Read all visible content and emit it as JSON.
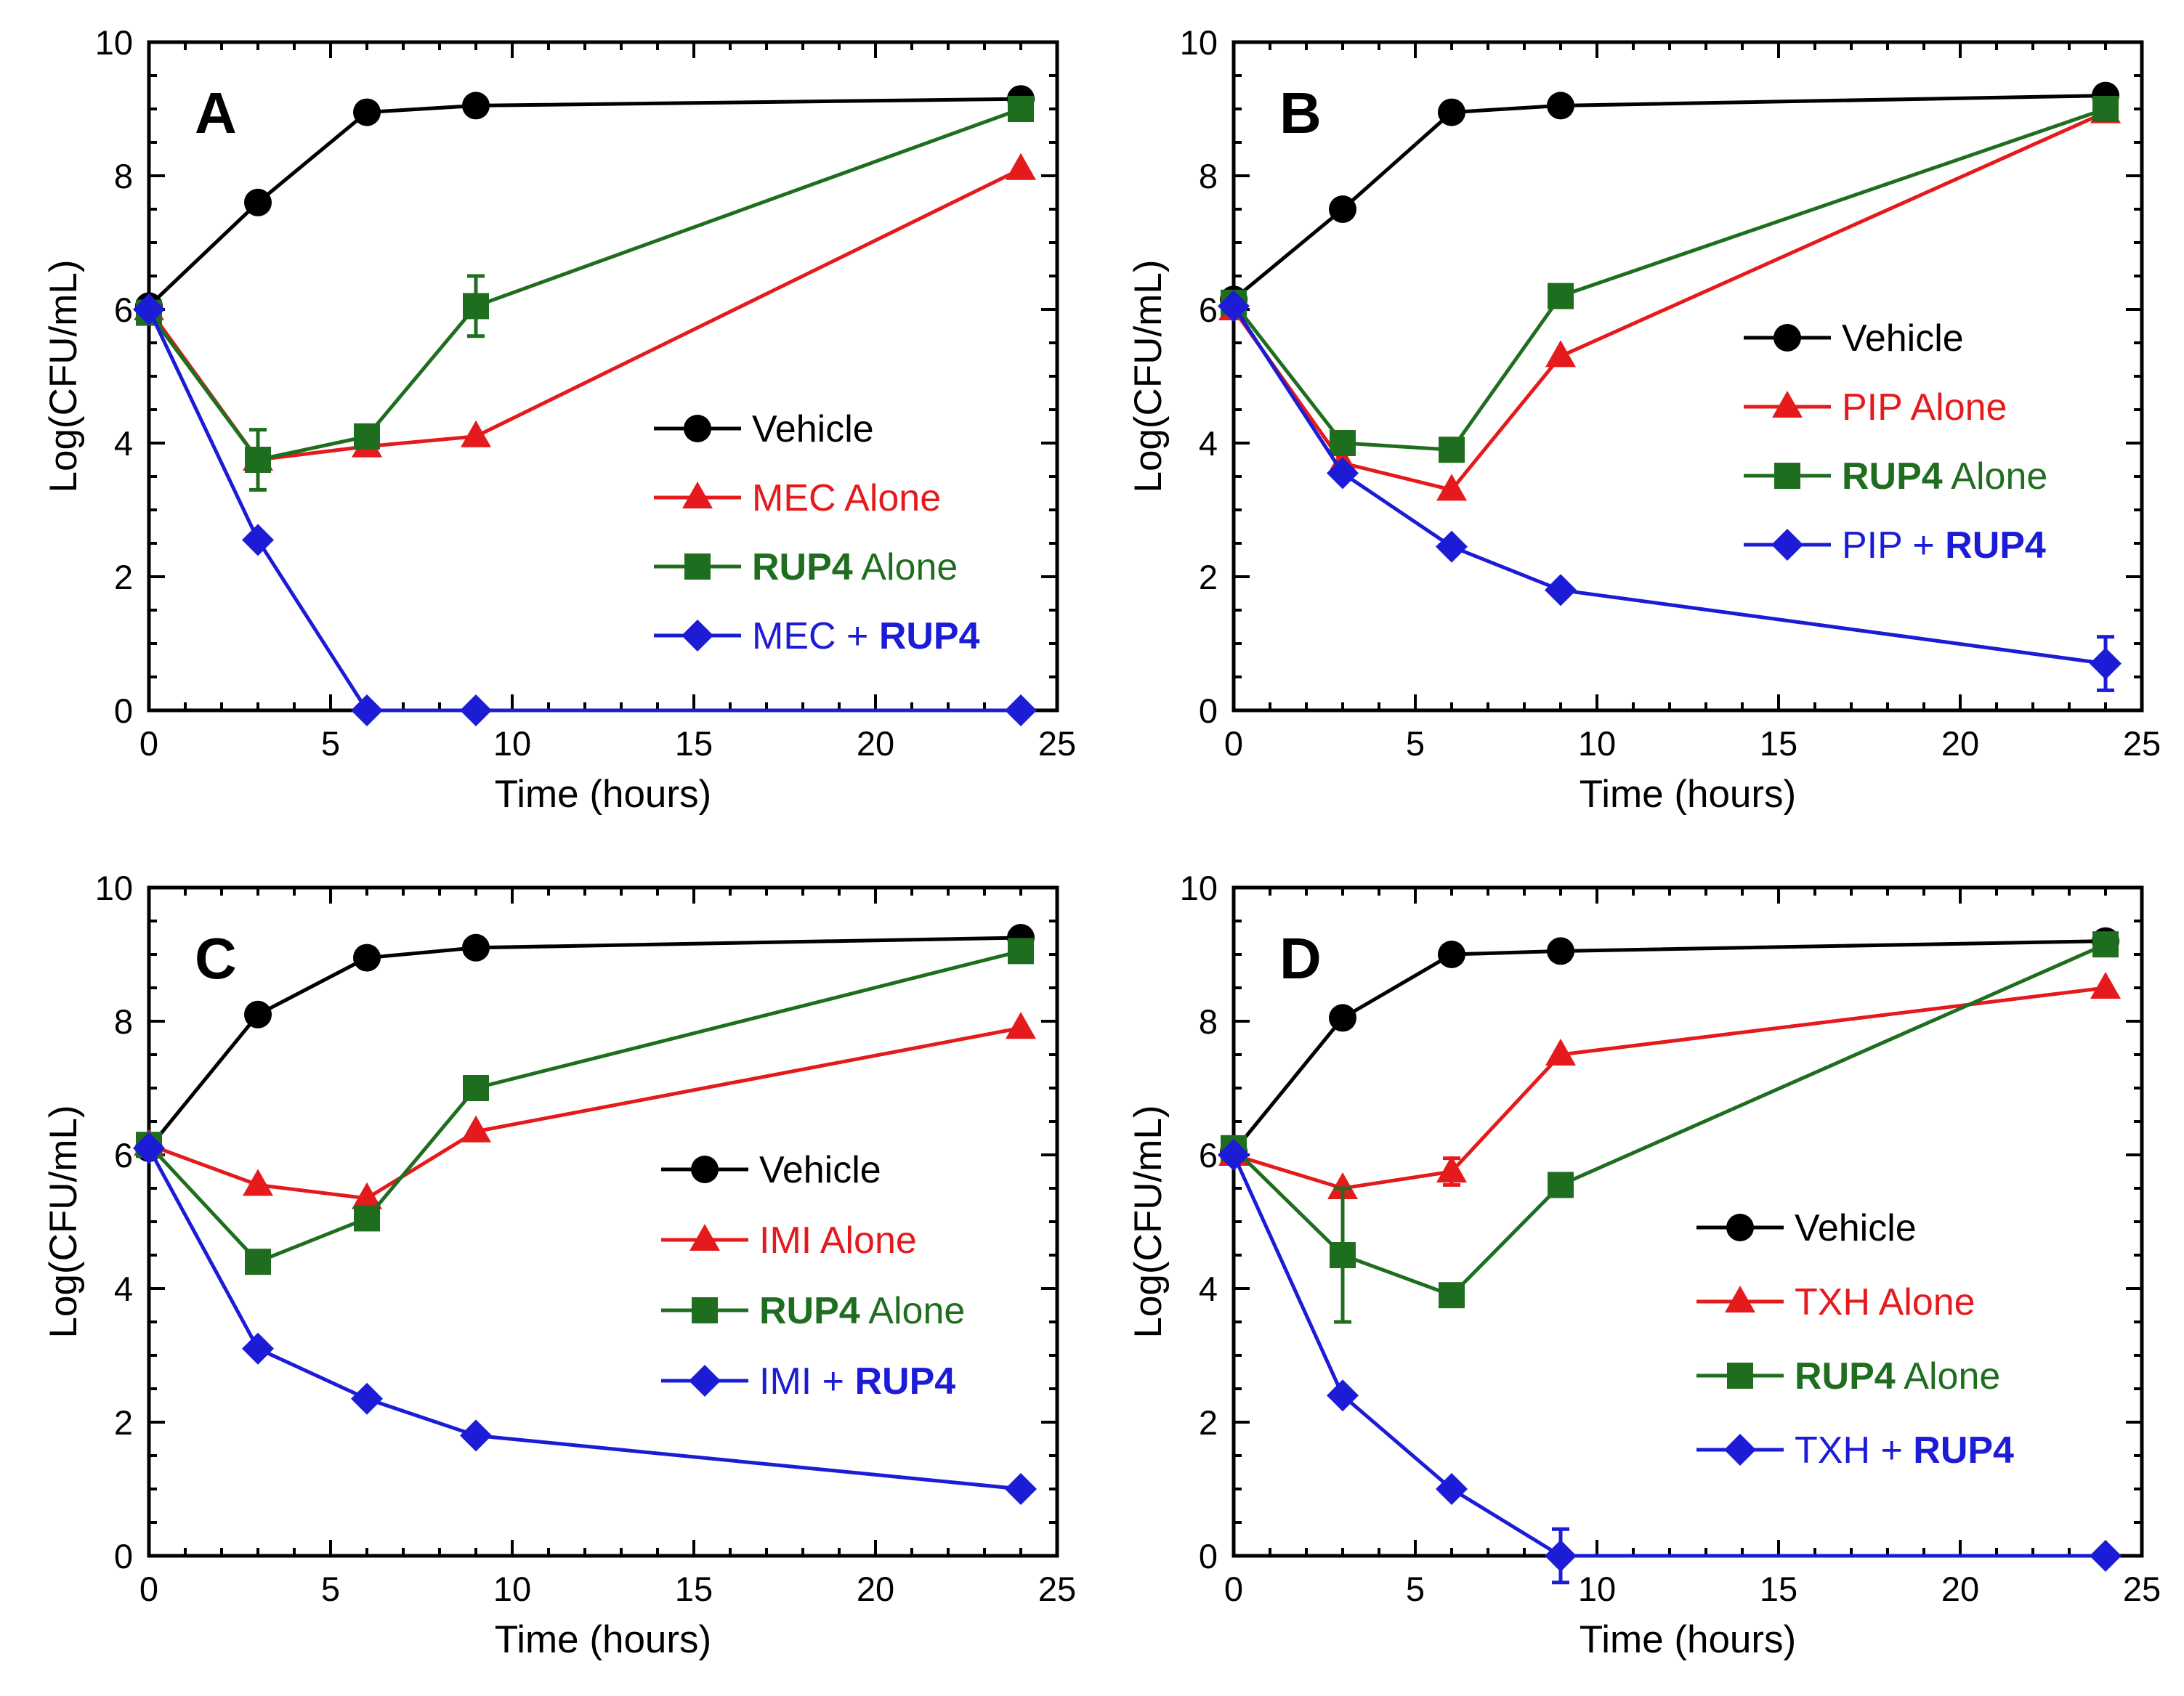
{
  "chart_data": [
    {
      "type": "line",
      "panel_label": "A",
      "xlabel": "Time (hours)",
      "ylabel": "Log(CFU/mL)",
      "xlim": [
        0,
        25
      ],
      "ylim": [
        0,
        10
      ],
      "xticks": [
        0,
        5,
        10,
        15,
        20,
        25
      ],
      "yticks": [
        0,
        2,
        4,
        6,
        8,
        10
      ],
      "x": [
        0,
        3,
        6,
        9,
        24
      ],
      "legend_position": "right-center",
      "series": [
        {
          "key": "vehicle",
          "name": "Vehicle",
          "drug": "",
          "joiner": "",
          "suffix": "",
          "marker": "circle",
          "color": "#000000",
          "values": [
            6.05,
            7.6,
            8.95,
            9.05,
            9.15
          ],
          "errors": [
            0,
            0,
            0,
            0,
            0
          ]
        },
        {
          "key": "drug",
          "name": "MEC Alone",
          "drug": "MEC",
          "joiner": "",
          "suffix": " Alone",
          "marker": "triangle",
          "color": "#e41a1c",
          "values": [
            6.0,
            3.75,
            3.95,
            4.1,
            8.1
          ],
          "errors": [
            0,
            0,
            0,
            0,
            0
          ]
        },
        {
          "key": "rup4",
          "name": "RUP4 Alone",
          "drug": "",
          "joiner": "",
          "suffix": " Alone",
          "bold": "RUP4",
          "marker": "square",
          "color": "#1f6e1f",
          "values": [
            5.95,
            3.75,
            4.1,
            6.05,
            9.0
          ],
          "errors": [
            0,
            0.45,
            0,
            0.45,
            0
          ]
        },
        {
          "key": "combo",
          "name": "MEC + RUP4",
          "drug": "MEC",
          "joiner": " + ",
          "suffix": "",
          "bold": "RUP4",
          "marker": "diamond",
          "color": "#1c1cd6",
          "values": [
            6.0,
            2.55,
            0,
            0,
            0
          ],
          "errors": [
            0,
            0,
            0,
            0,
            0
          ]
        }
      ]
    },
    {
      "type": "line",
      "panel_label": "B",
      "xlabel": "Time (hours)",
      "ylabel": "Log(CFU/mL)",
      "xlim": [
        0,
        25
      ],
      "ylim": [
        0,
        10
      ],
      "xticks": [
        0,
        5,
        10,
        15,
        20,
        25
      ],
      "yticks": [
        0,
        2,
        4,
        6,
        8,
        10
      ],
      "x": [
        0,
        3,
        6,
        9,
        24
      ],
      "legend_position": "upper-right",
      "series": [
        {
          "key": "vehicle",
          "name": "Vehicle",
          "drug": "",
          "joiner": "",
          "suffix": "",
          "marker": "circle",
          "color": "#000000",
          "values": [
            6.15,
            7.5,
            8.95,
            9.05,
            9.2
          ],
          "errors": [
            0,
            0,
            0,
            0,
            0
          ]
        },
        {
          "key": "drug",
          "name": "PIP Alone",
          "drug": "PIP",
          "joiner": "",
          "suffix": " Alone",
          "marker": "triangle",
          "color": "#e41a1c",
          "values": [
            6.0,
            3.7,
            3.3,
            5.3,
            8.95
          ],
          "errors": [
            0,
            0,
            0,
            0,
            0
          ]
        },
        {
          "key": "rup4",
          "name": "RUP4 Alone",
          "drug": "",
          "joiner": "",
          "suffix": " Alone",
          "bold": "RUP4",
          "marker": "square",
          "color": "#1f6e1f",
          "values": [
            6.1,
            4.0,
            3.9,
            6.2,
            9.0
          ],
          "errors": [
            0,
            0,
            0,
            0,
            0
          ]
        },
        {
          "key": "combo",
          "name": "PIP + RUP4",
          "drug": "PIP",
          "joiner": " + ",
          "suffix": "",
          "bold": "RUP4",
          "marker": "diamond",
          "color": "#1c1cd6",
          "values": [
            6.05,
            3.55,
            2.45,
            1.8,
            0.7
          ],
          "errors": [
            0,
            0,
            0,
            0,
            0.4
          ]
        }
      ]
    },
    {
      "type": "line",
      "panel_label": "C",
      "xlabel": "Time (hours)",
      "ylabel": "Log(CFU/mL)",
      "xlim": [
        0,
        25
      ],
      "ylim": [
        0,
        10
      ],
      "xticks": [
        0,
        5,
        10,
        15,
        20,
        25
      ],
      "yticks": [
        0,
        2,
        4,
        6,
        8,
        10
      ],
      "x": [
        0,
        3,
        6,
        9,
        24
      ],
      "legend_position": "right-center",
      "series": [
        {
          "key": "vehicle",
          "name": "Vehicle",
          "drug": "",
          "joiner": "",
          "suffix": "",
          "marker": "circle",
          "color": "#000000",
          "values": [
            6.1,
            8.1,
            8.95,
            9.1,
            9.25
          ],
          "errors": [
            0,
            0,
            0,
            0,
            0
          ]
        },
        {
          "key": "drug",
          "name": "IMI Alone",
          "drug": "IMI",
          "joiner": "",
          "suffix": " Alone",
          "marker": "triangle",
          "color": "#e41a1c",
          "values": [
            6.15,
            5.55,
            5.35,
            6.35,
            7.9
          ],
          "errors": [
            0,
            0,
            0,
            0,
            0
          ]
        },
        {
          "key": "rup4",
          "name": "RUP4 Alone",
          "drug": "",
          "joiner": "",
          "suffix": " Alone",
          "bold": "RUP4",
          "marker": "square",
          "color": "#1f6e1f",
          "values": [
            6.15,
            4.4,
            5.05,
            7.0,
            9.05
          ],
          "errors": [
            0,
            0,
            0,
            0,
            0
          ]
        },
        {
          "key": "combo",
          "name": "IMI + RUP4",
          "drug": "IMI",
          "joiner": " + ",
          "suffix": "",
          "bold": "RUP4",
          "marker": "diamond",
          "color": "#1c1cd6",
          "values": [
            6.1,
            3.1,
            2.35,
            1.8,
            1.0
          ],
          "errors": [
            0,
            0,
            0,
            0,
            0
          ]
        }
      ]
    },
    {
      "type": "line",
      "panel_label": "D",
      "xlabel": "Time (hours)",
      "ylabel": "Log(CFU/mL)",
      "xlim": [
        0,
        25
      ],
      "ylim": [
        0,
        10
      ],
      "xticks": [
        0,
        5,
        10,
        15,
        20,
        25
      ],
      "yticks": [
        0,
        2,
        4,
        6,
        8,
        10
      ],
      "x": [
        0,
        3,
        6,
        9,
        24
      ],
      "legend_position": "right-center",
      "series": [
        {
          "key": "vehicle",
          "name": "Vehicle",
          "drug": "",
          "joiner": "",
          "suffix": "",
          "marker": "circle",
          "color": "#000000",
          "values": [
            6.05,
            8.05,
            9.0,
            9.05,
            9.2
          ],
          "errors": [
            0,
            0,
            0,
            0,
            0
          ]
        },
        {
          "key": "drug",
          "name": "TXH Alone",
          "drug": "TXH",
          "joiner": "",
          "suffix": " Alone",
          "marker": "triangle",
          "color": "#e41a1c",
          "values": [
            6.0,
            5.5,
            5.75,
            7.5,
            8.5
          ],
          "errors": [
            0,
            0,
            0.2,
            0,
            0
          ]
        },
        {
          "key": "rup4",
          "name": "RUP4 Alone",
          "drug": "",
          "joiner": "",
          "suffix": " Alone",
          "bold": "RUP4",
          "marker": "square",
          "color": "#1f6e1f",
          "values": [
            6.1,
            4.5,
            3.9,
            5.55,
            9.15
          ],
          "errors": [
            0,
            1.0,
            0,
            0,
            0
          ]
        },
        {
          "key": "combo",
          "name": "TXH + RUP4",
          "drug": "TXH",
          "joiner": " + ",
          "suffix": "",
          "bold": "RUP4",
          "marker": "diamond",
          "color": "#1c1cd6",
          "values": [
            6.0,
            2.4,
            1.0,
            0,
            0
          ],
          "errors": [
            0,
            0,
            0,
            0.4,
            0
          ]
        }
      ]
    }
  ]
}
